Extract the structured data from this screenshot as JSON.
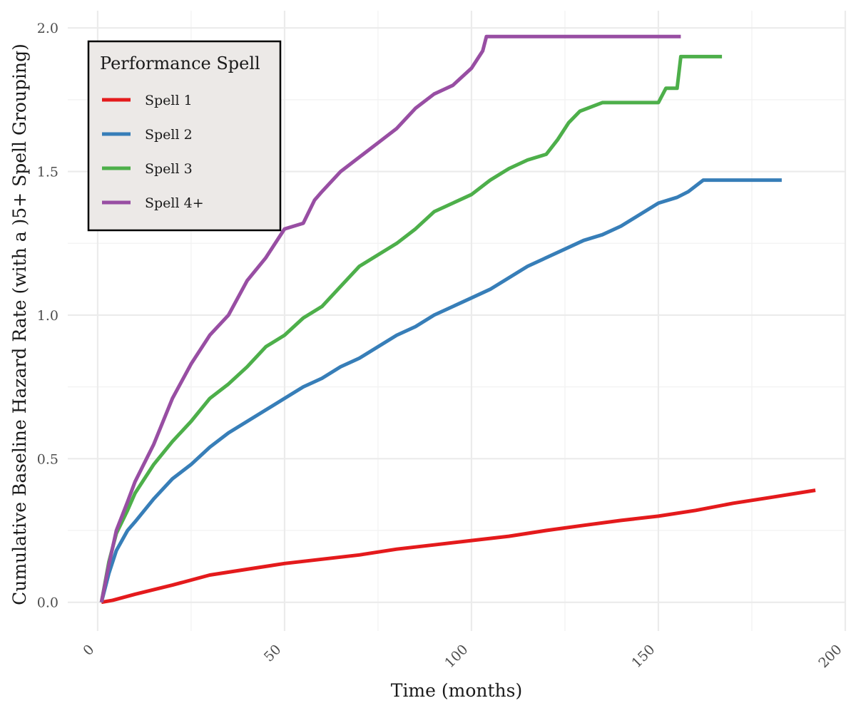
{
  "chart_data": {
    "type": "line",
    "xlabel": "Time (months)",
    "ylabel": "Cumulative Baseline Hazard Rate (with a )5+ Spell Grouping)",
    "xlim": [
      -8,
      200
    ],
    "ylim": [
      -0.1,
      2.06
    ],
    "x_ticks": [
      0,
      50,
      100,
      150,
      200
    ],
    "y_ticks": [
      0.0,
      0.5,
      1.0,
      1.5,
      2.0
    ],
    "x_tick_labels": [
      "0",
      "50",
      "100",
      "150",
      "200"
    ],
    "y_tick_labels": [
      "0.0",
      "0.5",
      "1.0",
      "1.5",
      "2.0"
    ],
    "grid": true,
    "legend": {
      "title": "Performance Spell",
      "position": "top-left"
    },
    "series": [
      {
        "name": "Spell 1",
        "color": "#E41A1C",
        "step": false,
        "points": [
          [
            1,
            0.0
          ],
          [
            4,
            0.007
          ],
          [
            10,
            0.028
          ],
          [
            20,
            0.06
          ],
          [
            30,
            0.095
          ],
          [
            40,
            0.115
          ],
          [
            50,
            0.135
          ],
          [
            60,
            0.15
          ],
          [
            70,
            0.165
          ],
          [
            80,
            0.185
          ],
          [
            90,
            0.2
          ],
          [
            100,
            0.215
          ],
          [
            110,
            0.23
          ],
          [
            120,
            0.25
          ],
          [
            130,
            0.268
          ],
          [
            140,
            0.285
          ],
          [
            150,
            0.3
          ],
          [
            160,
            0.32
          ],
          [
            170,
            0.345
          ],
          [
            180,
            0.365
          ],
          [
            192,
            0.39
          ]
        ]
      },
      {
        "name": "Spell 2",
        "color": "#377EB8",
        "step": false,
        "points": [
          [
            1,
            0.0
          ],
          [
            3,
            0.1
          ],
          [
            5,
            0.18
          ],
          [
            8,
            0.25
          ],
          [
            10,
            0.28
          ],
          [
            15,
            0.36
          ],
          [
            20,
            0.43
          ],
          [
            25,
            0.48
          ],
          [
            30,
            0.54
          ],
          [
            35,
            0.59
          ],
          [
            40,
            0.63
          ],
          [
            45,
            0.67
          ],
          [
            50,
            0.71
          ],
          [
            55,
            0.75
          ],
          [
            60,
            0.78
          ],
          [
            65,
            0.82
          ],
          [
            70,
            0.85
          ],
          [
            75,
            0.89
          ],
          [
            80,
            0.93
          ],
          [
            85,
            0.96
          ],
          [
            90,
            1.0
          ],
          [
            95,
            1.03
          ],
          [
            100,
            1.06
          ],
          [
            105,
            1.09
          ],
          [
            110,
            1.13
          ],
          [
            115,
            1.17
          ],
          [
            120,
            1.2
          ],
          [
            125,
            1.23
          ],
          [
            130,
            1.26
          ],
          [
            135,
            1.28
          ],
          [
            140,
            1.31
          ],
          [
            145,
            1.35
          ],
          [
            150,
            1.39
          ],
          [
            155,
            1.41
          ],
          [
            158,
            1.43
          ],
          [
            162,
            1.47
          ],
          [
            183,
            1.47
          ]
        ]
      },
      {
        "name": "Spell 3",
        "color": "#4DAF4A",
        "step": false,
        "points": [
          [
            1,
            0.0
          ],
          [
            3,
            0.14
          ],
          [
            5,
            0.24
          ],
          [
            8,
            0.32
          ],
          [
            10,
            0.38
          ],
          [
            15,
            0.48
          ],
          [
            20,
            0.56
          ],
          [
            25,
            0.63
          ],
          [
            30,
            0.71
          ],
          [
            35,
            0.76
          ],
          [
            40,
            0.82
          ],
          [
            45,
            0.89
          ],
          [
            50,
            0.93
          ],
          [
            55,
            0.99
          ],
          [
            60,
            1.03
          ],
          [
            65,
            1.1
          ],
          [
            70,
            1.17
          ],
          [
            75,
            1.21
          ],
          [
            80,
            1.25
          ],
          [
            85,
            1.3
          ],
          [
            90,
            1.36
          ],
          [
            95,
            1.39
          ],
          [
            100,
            1.42
          ],
          [
            105,
            1.47
          ],
          [
            110,
            1.51
          ],
          [
            115,
            1.54
          ],
          [
            120,
            1.56
          ],
          [
            123,
            1.61
          ],
          [
            126,
            1.67
          ],
          [
            129,
            1.71
          ],
          [
            135,
            1.74
          ],
          [
            150,
            1.74
          ],
          [
            152,
            1.79
          ],
          [
            155,
            1.79
          ],
          [
            156,
            1.9
          ],
          [
            167,
            1.9
          ]
        ]
      },
      {
        "name": "Spell 4+",
        "color": "#984EA3",
        "step": false,
        "points": [
          [
            1,
            0.0
          ],
          [
            3,
            0.13
          ],
          [
            5,
            0.25
          ],
          [
            8,
            0.35
          ],
          [
            10,
            0.42
          ],
          [
            15,
            0.55
          ],
          [
            20,
            0.71
          ],
          [
            25,
            0.83
          ],
          [
            30,
            0.93
          ],
          [
            35,
            1.0
          ],
          [
            40,
            1.12
          ],
          [
            45,
            1.2
          ],
          [
            50,
            1.3
          ],
          [
            55,
            1.32
          ],
          [
            58,
            1.4
          ],
          [
            60,
            1.43
          ],
          [
            65,
            1.5
          ],
          [
            70,
            1.55
          ],
          [
            75,
            1.6
          ],
          [
            80,
            1.65
          ],
          [
            85,
            1.72
          ],
          [
            90,
            1.77
          ],
          [
            95,
            1.8
          ],
          [
            100,
            1.86
          ],
          [
            103,
            1.92
          ],
          [
            104,
            1.97
          ],
          [
            156,
            1.97
          ]
        ]
      }
    ]
  }
}
